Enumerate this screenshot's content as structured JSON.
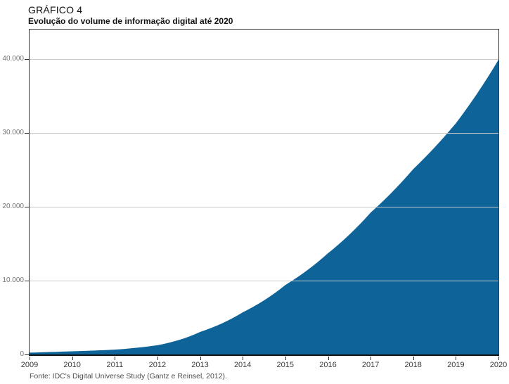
{
  "header": {
    "title": "GRÁFICO 4",
    "subtitle": "Evolução do volume de informação digital até 2020"
  },
  "footer": {
    "source": "Fonte: IDC's Digital Universe Study (Gantz e Reinsel, 2012)."
  },
  "chart_data": {
    "type": "area",
    "title": "Evolução do volume de informação digital até 2020",
    "x": [
      2009,
      2010,
      2011,
      2012,
      2013,
      2014,
      2015,
      2016,
      2017,
      2018,
      2019,
      2020
    ],
    "values": [
      250,
      430,
      650,
      1250,
      3050,
      5700,
      9400,
      13700,
      19200,
      25100,
      31300,
      39900
    ],
    "xlabel": "",
    "ylabel": "",
    "ylim": [
      0,
      44000
    ],
    "xtick_labels": [
      "2009",
      "2010",
      "2011",
      "2012",
      "2013",
      "2014",
      "2015",
      "2016",
      "2017",
      "2018",
      "2019",
      "2020"
    ],
    "yticks": [
      0,
      10000,
      20000,
      30000,
      40000
    ],
    "ytick_labels": [
      "0",
      "10.000",
      "20.000",
      "30.000",
      "40.000"
    ],
    "grid": "horizontal",
    "legend": "none",
    "colors": {
      "area_fill": "#0E6399",
      "gridline": "#C9C9C9",
      "axis_frame": "#333333",
      "x_tick_label": "#3A3A3A",
      "y_tick_label": "#757575",
      "title_text": "#111111",
      "source_text": "#4D4D4D"
    }
  }
}
